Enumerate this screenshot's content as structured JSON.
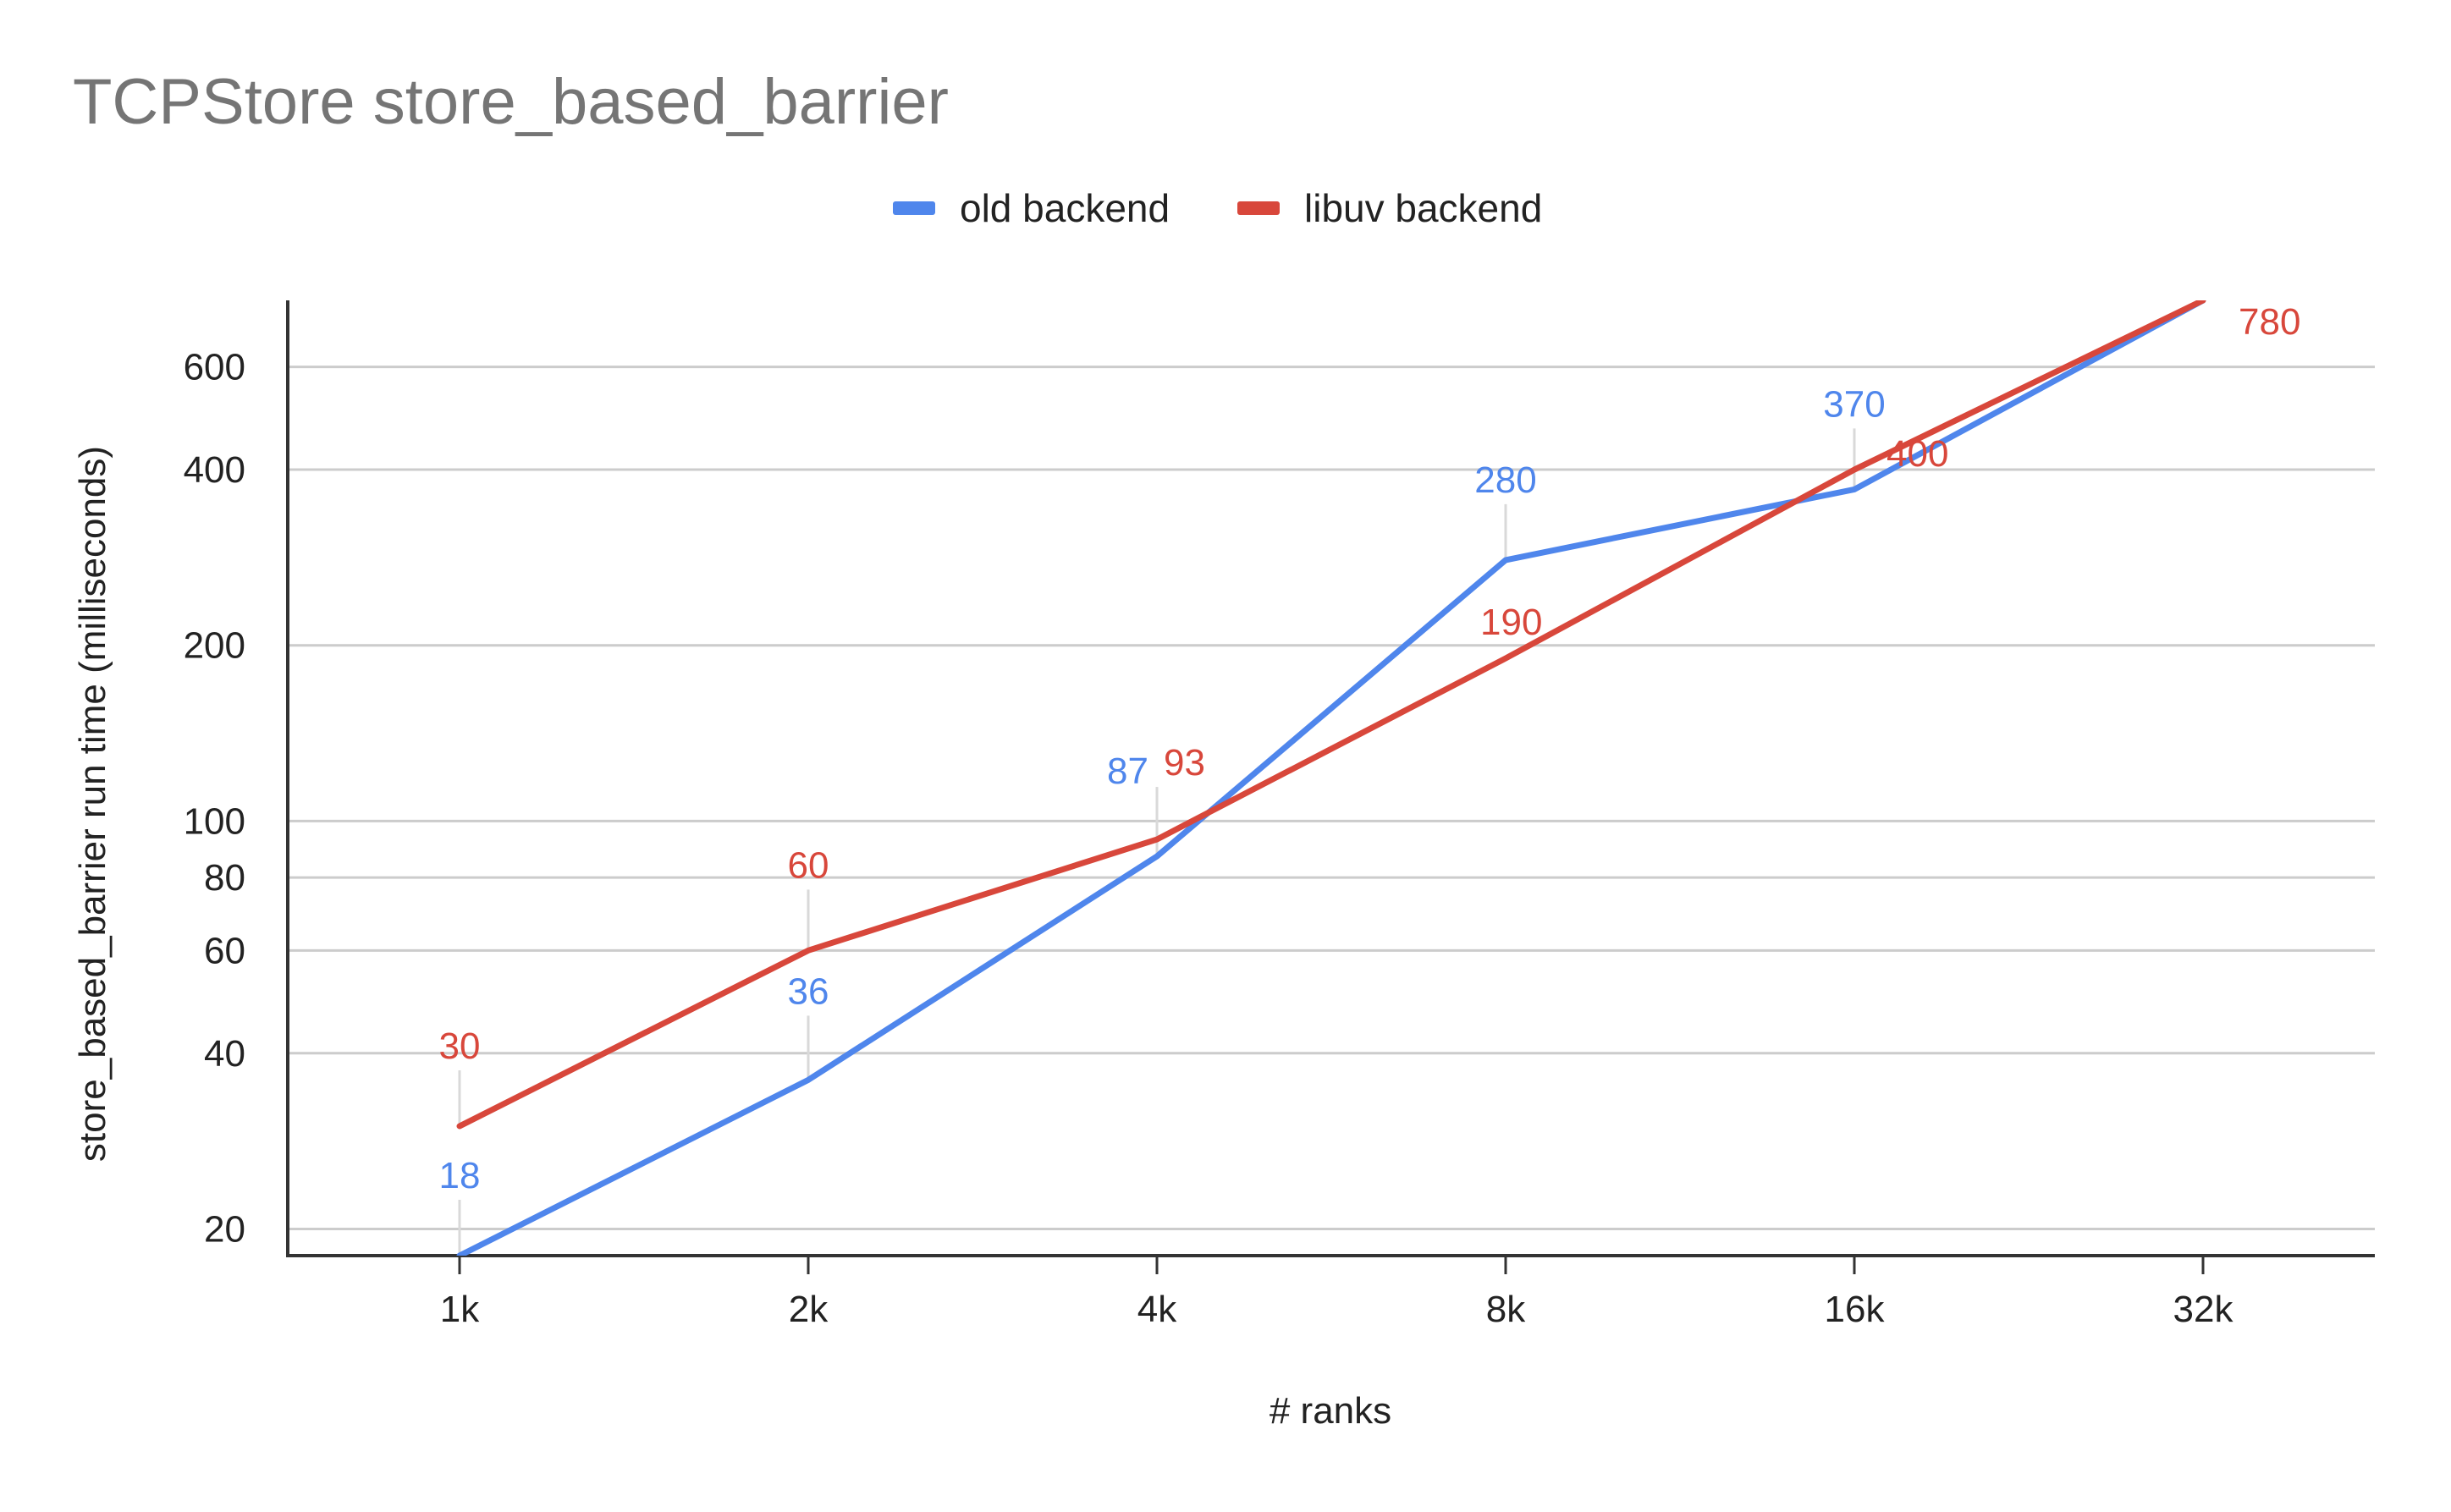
{
  "chart_data": {
    "type": "line",
    "title": "TCPStore store_based_barrier",
    "xlabel": "# ranks",
    "ylabel": "store_based_barrier run time (milliseconds)",
    "categories": [
      "1k",
      "2k",
      "4k",
      "8k",
      "16k",
      "32k"
    ],
    "y_scale": "log",
    "ylim": [
      18,
      780
    ],
    "y_ticks": [
      20,
      40,
      60,
      80,
      100,
      200,
      400,
      600
    ],
    "y_tick_labels": [
      "20",
      "40",
      "60",
      "80",
      "100",
      "200",
      "400",
      "600"
    ],
    "grid": true,
    "legend_position": "top",
    "series": [
      {
        "name": "old backend",
        "color": "#4f86ec",
        "values": [
          18,
          36,
          87,
          280,
          370,
          780
        ],
        "labels": [
          "18",
          "36",
          "87",
          "280",
          "370",
          ""
        ]
      },
      {
        "name": "libuv backend",
        "color": "#d8473b",
        "values": [
          30,
          60,
          93,
          190,
          400,
          780
        ],
        "labels": [
          "30",
          "60",
          "93",
          "190",
          "400",
          "780"
        ]
      }
    ]
  }
}
